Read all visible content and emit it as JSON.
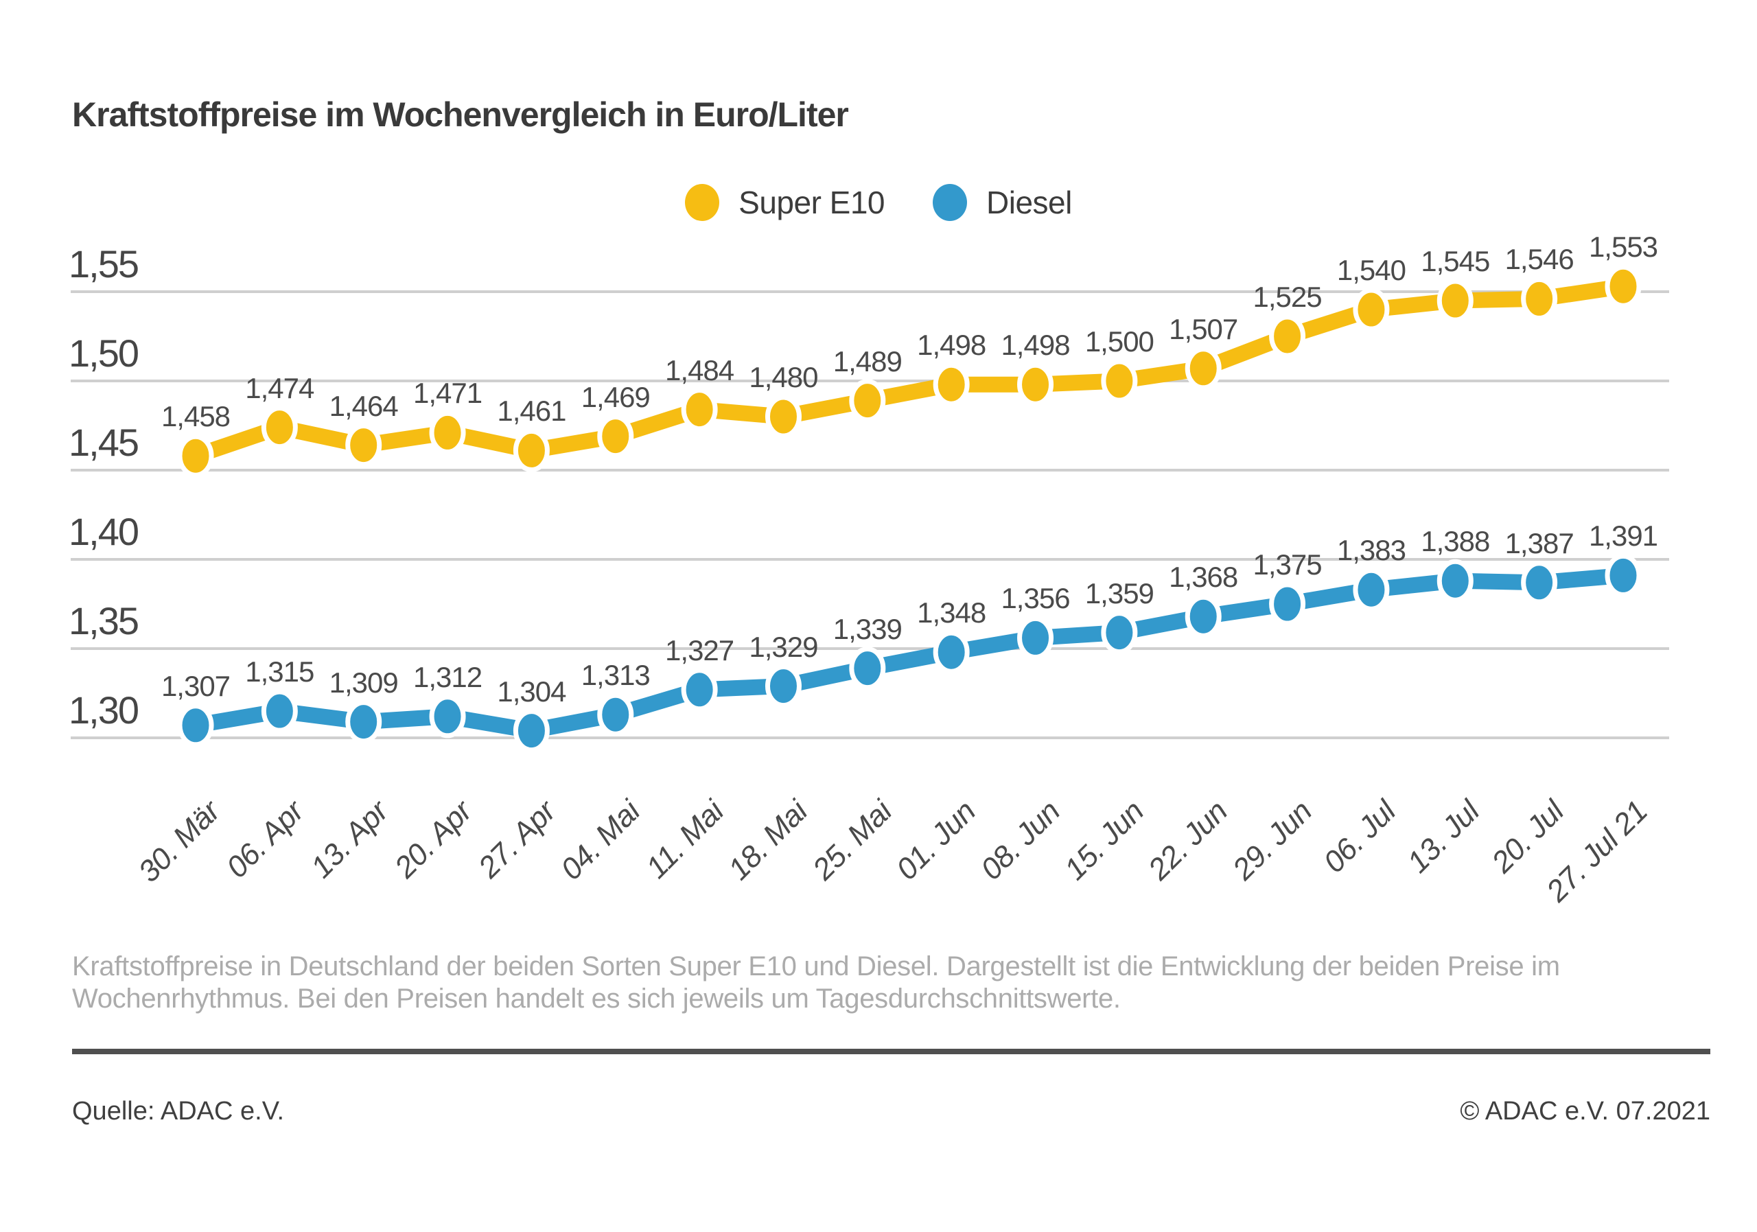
{
  "title": "Kraftstoffpreise im Wochenvergleich in Euro/Liter",
  "legend": {
    "items": [
      {
        "label": "Super E10",
        "color": "#F6BD13"
      },
      {
        "label": "Diesel",
        "color": "#3399CC"
      }
    ]
  },
  "chart_data": {
    "type": "line",
    "title": "Kraftstoffpreise im Wochenvergleich in Euro/Liter",
    "xlabel": "",
    "ylabel": "",
    "categories": [
      "30. Mär",
      "06. Apr",
      "13. Apr",
      "20. Apr",
      "27. Apr",
      "04. Mai",
      "11. Mai",
      "18. Mai",
      "25. Mai",
      "01. Jun",
      "08. Jun",
      "15. Jun",
      "22. Jun",
      "29. Jun",
      "06. Jul",
      "13. Jul",
      "20. Jul",
      "27. Jul 21"
    ],
    "series": [
      {
        "name": "Super E10",
        "color": "#F6BD13",
        "values": [
          1.458,
          1.474,
          1.464,
          1.471,
          1.461,
          1.469,
          1.484,
          1.48,
          1.489,
          1.498,
          1.498,
          1.5,
          1.507,
          1.525,
          1.54,
          1.545,
          1.546,
          1.553
        ]
      },
      {
        "name": "Diesel",
        "color": "#3399CC",
        "values": [
          1.307,
          1.315,
          1.309,
          1.312,
          1.304,
          1.313,
          1.327,
          1.329,
          1.339,
          1.348,
          1.356,
          1.359,
          1.368,
          1.375,
          1.383,
          1.388,
          1.387,
          1.391
        ]
      }
    ],
    "yticks": [
      1.55,
      1.5,
      1.45,
      1.4,
      1.35,
      1.3
    ],
    "ylim": [
      1.3,
      1.55
    ],
    "grid": true,
    "gridline_color": "#cfcfcf",
    "legend_position": "top-center",
    "decimal_separator": ",",
    "value_label_decimals": 3,
    "tick_label_decimals": 2
  },
  "caption": {
    "lines": [
      "Kraftstoffpreise in Deutschland der beiden Sorten Super E10 und Diesel. Dargestellt ist die Entwicklung der beiden Preise im",
      "Wochenrhythmus. Bei den Preisen handelt es sich jeweils um Tagesdurchschnittswerte."
    ]
  },
  "footer": {
    "source": "Quelle: ADAC e.V.",
    "copyright": "© ADAC e.V. 07.2021"
  }
}
